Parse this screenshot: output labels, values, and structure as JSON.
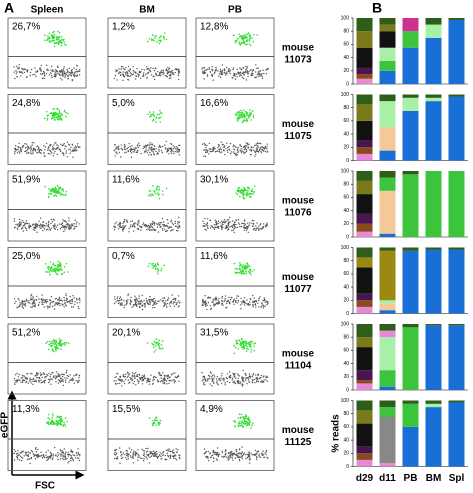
{
  "panel_a": {
    "label": "A",
    "columns": [
      "Spleen",
      "BM",
      "PB"
    ],
    "y_axis": "eGFP",
    "x_axis": "FSC",
    "rows": [
      {
        "mouse": [
          "mouse",
          "11073"
        ],
        "percents": [
          "26,7%",
          "1,2%",
          "12,8%"
        ]
      },
      {
        "mouse": [
          "mouse",
          "11075"
        ],
        "percents": [
          "24,8%",
          "5,0%",
          "16,6%"
        ]
      },
      {
        "mouse": [
          "mouse",
          "11076"
        ],
        "percents": [
          "51,9%",
          "11,6%",
          "30,1%"
        ]
      },
      {
        "mouse": [
          "mouse",
          "11077"
        ],
        "percents": [
          "25,0%",
          "0,7%",
          "11,6%"
        ]
      },
      {
        "mouse": [
          "mouse",
          "11104"
        ],
        "percents": [
          "51,2%",
          "20,1%",
          "31,5%"
        ]
      },
      {
        "mouse": [
          "mouse",
          "11125"
        ],
        "percents": [
          "11,3%",
          "15,5%",
          "4,9%"
        ]
      }
    ]
  },
  "panel_b": {
    "label": "B",
    "ylabel": "% reads",
    "categories": [
      "d29",
      "d11",
      "PB",
      "BM",
      "Spl"
    ]
  },
  "chart_data": [
    {
      "type": "bar",
      "stacked": true,
      "ylim": [
        0,
        100
      ],
      "yticks": [
        0,
        20,
        40,
        60,
        80,
        100
      ],
      "series": [
        {
          "color": "#1a6fd6",
          "values": [
            0,
            20,
            55,
            70,
            97
          ]
        },
        {
          "color": "#e58ad6",
          "values": [
            8,
            0,
            0,
            0,
            0
          ]
        },
        {
          "color": "#8b4a1c",
          "values": [
            7,
            0,
            0,
            0,
            0
          ]
        },
        {
          "color": "#4a1450",
          "values": [
            10,
            0,
            0,
            0,
            0
          ]
        },
        {
          "color": "#3cc43c",
          "values": [
            0,
            15,
            25,
            0,
            0
          ]
        },
        {
          "color": "#a8f0a8",
          "values": [
            0,
            20,
            0,
            20,
            0
          ]
        },
        {
          "color": "#111111",
          "values": [
            30,
            25,
            0,
            0,
            0
          ]
        },
        {
          "color": "#7a7a1a",
          "values": [
            25,
            10,
            0,
            0,
            0
          ]
        },
        {
          "color": "#d0308f",
          "values": [
            0,
            0,
            20,
            0,
            0
          ]
        },
        {
          "color": "#2e5e1a",
          "values": [
            20,
            10,
            0,
            10,
            3
          ]
        }
      ]
    },
    {
      "type": "bar",
      "stacked": true,
      "ylim": [
        0,
        100
      ],
      "yticks": [
        0,
        20,
        40,
        60,
        80,
        100
      ],
      "series": [
        {
          "color": "#1a6fd6",
          "values": [
            0,
            15,
            75,
            90,
            97
          ]
        },
        {
          "color": "#e58ad6",
          "values": [
            10,
            0,
            0,
            0,
            0
          ]
        },
        {
          "color": "#8b4a1c",
          "values": [
            10,
            0,
            0,
            0,
            0
          ]
        },
        {
          "color": "#4a1450",
          "values": [
            10,
            0,
            0,
            0,
            0
          ]
        },
        {
          "color": "#f5c89a",
          "values": [
            0,
            35,
            0,
            0,
            0
          ]
        },
        {
          "color": "#a8f0a8",
          "values": [
            0,
            40,
            20,
            5,
            0
          ]
        },
        {
          "color": "#111111",
          "values": [
            30,
            0,
            0,
            0,
            0
          ]
        },
        {
          "color": "#7a7a1a",
          "values": [
            25,
            0,
            0,
            0,
            0
          ]
        },
        {
          "color": "#2e5e1a",
          "values": [
            15,
            10,
            5,
            5,
            3
          ]
        }
      ]
    },
    {
      "type": "bar",
      "stacked": true,
      "ylim": [
        0,
        100
      ],
      "yticks": [
        0,
        20,
        40,
        60,
        80,
        100
      ],
      "series": [
        {
          "color": "#1a6fd6",
          "values": [
            0,
            5,
            0,
            0,
            0
          ]
        },
        {
          "color": "#e58ad6",
          "values": [
            8,
            0,
            0,
            0,
            0
          ]
        },
        {
          "color": "#8b4a1c",
          "values": [
            12,
            0,
            0,
            0,
            0
          ]
        },
        {
          "color": "#4a1450",
          "values": [
            15,
            0,
            0,
            0,
            0
          ]
        },
        {
          "color": "#f5c89a",
          "values": [
            0,
            65,
            0,
            0,
            0
          ]
        },
        {
          "color": "#3cc43c",
          "values": [
            0,
            20,
            95,
            100,
            100
          ]
        },
        {
          "color": "#111111",
          "values": [
            30,
            0,
            0,
            0,
            0
          ]
        },
        {
          "color": "#7a7a1a",
          "values": [
            20,
            0,
            0,
            0,
            0
          ]
        },
        {
          "color": "#2e5e1a",
          "values": [
            15,
            10,
            5,
            0,
            0
          ]
        }
      ]
    },
    {
      "type": "bar",
      "stacked": true,
      "ylim": [
        0,
        100
      ],
      "yticks": [
        0,
        20,
        40,
        60,
        80,
        100
      ],
      "series": [
        {
          "color": "#1a6fd6",
          "values": [
            0,
            5,
            95,
            97,
            97
          ]
        },
        {
          "color": "#e58ad6",
          "values": [
            10,
            0,
            0,
            0,
            0
          ]
        },
        {
          "color": "#8b4a1c",
          "values": [
            10,
            0,
            0,
            0,
            0
          ]
        },
        {
          "color": "#4a1450",
          "values": [
            10,
            0,
            0,
            0,
            0
          ]
        },
        {
          "color": "#f5c89a",
          "values": [
            0,
            10,
            0,
            0,
            0
          ]
        },
        {
          "color": "#a8f0a8",
          "values": [
            0,
            5,
            0,
            0,
            0
          ]
        },
        {
          "color": "#111111",
          "values": [
            40,
            0,
            0,
            0,
            0
          ]
        },
        {
          "color": "#9a8a10",
          "values": [
            15,
            75,
            0,
            0,
            0
          ]
        },
        {
          "color": "#2e5e1a",
          "values": [
            15,
            5,
            5,
            3,
            3
          ]
        }
      ]
    },
    {
      "type": "bar",
      "stacked": true,
      "ylim": [
        0,
        100
      ],
      "yticks": [
        0,
        20,
        40,
        60,
        80,
        100
      ],
      "series": [
        {
          "color": "#1a6fd6",
          "values": [
            0,
            5,
            0,
            98,
            98
          ]
        },
        {
          "color": "#e58ad6",
          "values": [
            10,
            0,
            0,
            0,
            0
          ]
        },
        {
          "color": "#8b4a1c",
          "values": [
            5,
            0,
            0,
            0,
            0
          ]
        },
        {
          "color": "#4a1450",
          "values": [
            15,
            0,
            0,
            0,
            0
          ]
        },
        {
          "color": "#3cc43c",
          "values": [
            0,
            25,
            95,
            0,
            0
          ]
        },
        {
          "color": "#a8f0a8",
          "values": [
            0,
            50,
            0,
            0,
            0
          ]
        },
        {
          "color": "#111111",
          "values": [
            35,
            0,
            0,
            0,
            0
          ]
        },
        {
          "color": "#7a7a1a",
          "values": [
            15,
            0,
            0,
            0,
            0
          ]
        },
        {
          "color": "#e58ad6",
          "values": [
            0,
            10,
            0,
            0,
            0
          ]
        },
        {
          "color": "#2e5e1a",
          "values": [
            20,
            10,
            5,
            2,
            2
          ]
        }
      ]
    },
    {
      "type": "bar",
      "stacked": true,
      "ylim": [
        0,
        100
      ],
      "yticks": [
        0,
        20,
        40,
        60,
        80,
        100
      ],
      "series": [
        {
          "color": "#1a6fd6",
          "values": [
            0,
            0,
            60,
            90,
            97
          ]
        },
        {
          "color": "#e58ad6",
          "values": [
            10,
            5,
            0,
            0,
            0
          ]
        },
        {
          "color": "#8b4a1c",
          "values": [
            10,
            0,
            0,
            0,
            0
          ]
        },
        {
          "color": "#4a1450",
          "values": [
            10,
            0,
            0,
            0,
            0
          ]
        },
        {
          "color": "#888888",
          "values": [
            0,
            70,
            0,
            0,
            0
          ]
        },
        {
          "color": "#3cc43c",
          "values": [
            0,
            15,
            35,
            0,
            0
          ]
        },
        {
          "color": "#a8f0a8",
          "values": [
            0,
            0,
            0,
            5,
            0
          ]
        },
        {
          "color": "#111111",
          "values": [
            35,
            0,
            0,
            0,
            0
          ]
        },
        {
          "color": "#7a7a1a",
          "values": [
            20,
            0,
            0,
            0,
            0
          ]
        },
        {
          "color": "#2e5e1a",
          "values": [
            15,
            10,
            5,
            5,
            3
          ]
        }
      ]
    }
  ]
}
